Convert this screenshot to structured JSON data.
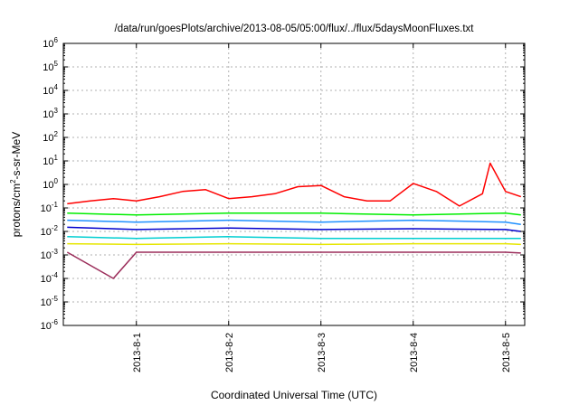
{
  "chart_data": {
    "type": "line",
    "title": "/data/run/goesPlots/archive/2013-08-05/05:00/flux/../flux/5daysMoonFluxes.txt",
    "xlabel": "Coordinated Universal Time (UTC)",
    "ylabel": {
      "prefix": "protons/cm",
      "sup": "2",
      "suffix": "-s-sr-MeV"
    },
    "y_scale": "log",
    "ylim": [
      1e-06,
      1000000.0
    ],
    "y_ticks": [
      {
        "value": 1e-06,
        "base": "10",
        "exp": "-6"
      },
      {
        "value": 1e-05,
        "base": "10",
        "exp": "-5"
      },
      {
        "value": 0.0001,
        "base": "10",
        "exp": "-4"
      },
      {
        "value": 0.001,
        "base": "10",
        "exp": "-3"
      },
      {
        "value": 0.01,
        "base": "10",
        "exp": "-2"
      },
      {
        "value": 0.1,
        "base": "10",
        "exp": "-1"
      },
      {
        "value": 1,
        "base": "10",
        "exp": "0"
      },
      {
        "value": 10,
        "base": "10",
        "exp": "1"
      },
      {
        "value": 100,
        "base": "10",
        "exp": "2"
      },
      {
        "value": 1000,
        "base": "10",
        "exp": "3"
      },
      {
        "value": 10000,
        "base": "10",
        "exp": "4"
      },
      {
        "value": 100000,
        "base": "10",
        "exp": "5"
      },
      {
        "value": 1000000,
        "base": "10",
        "exp": "6"
      }
    ],
    "xlim": [
      "2013-07-31T05:00",
      "2013-08-05T05:00"
    ],
    "x_ticks": [
      "2013-8-1",
      "2013-8-2",
      "2013-8-3",
      "2013-8-4",
      "2013-8-5"
    ],
    "grid": true,
    "series": [
      {
        "color": "#ff0000",
        "x": [
          "2013-07-31T06:00",
          "2013-07-31T12:00",
          "2013-07-31T18:00",
          "2013-08-01T00:00",
          "2013-08-01T06:00",
          "2013-08-01T12:00",
          "2013-08-01T18:00",
          "2013-08-02T00:00",
          "2013-08-02T06:00",
          "2013-08-02T12:00",
          "2013-08-02T18:00",
          "2013-08-03T00:00",
          "2013-08-03T06:00",
          "2013-08-03T12:00",
          "2013-08-03T18:00",
          "2013-08-04T00:00",
          "2013-08-04T06:00",
          "2013-08-04T12:00",
          "2013-08-04T18:00",
          "2013-08-04T20:00",
          "2013-08-05T00:00",
          "2013-08-05T04:00"
        ],
        "values": [
          0.15,
          0.2,
          0.25,
          0.2,
          0.3,
          0.5,
          0.6,
          0.25,
          0.3,
          0.4,
          0.8,
          0.9,
          0.3,
          0.2,
          0.2,
          1.1,
          0.5,
          0.12,
          0.4,
          8,
          0.5,
          0.3
        ]
      },
      {
        "color": "#00ee00",
        "x": [
          "2013-07-31T06:00",
          "2013-08-01T00:00",
          "2013-08-02T00:00",
          "2013-08-03T00:00",
          "2013-08-04T00:00",
          "2013-08-05T00:00",
          "2013-08-05T04:00"
        ],
        "values": [
          0.06,
          0.05,
          0.06,
          0.06,
          0.05,
          0.06,
          0.05
        ]
      },
      {
        "color": "#1e90ff",
        "x": [
          "2013-07-31T06:00",
          "2013-08-01T00:00",
          "2013-08-02T00:00",
          "2013-08-03T00:00",
          "2013-08-04T00:00",
          "2013-08-05T00:00",
          "2013-08-05T04:00"
        ],
        "values": [
          0.03,
          0.025,
          0.03,
          0.025,
          0.03,
          0.025,
          0.02
        ]
      },
      {
        "color": "#0000cd",
        "x": [
          "2013-07-31T06:00",
          "2013-08-01T00:00",
          "2013-08-02T00:00",
          "2013-08-03T00:00",
          "2013-08-04T00:00",
          "2013-08-05T00:00",
          "2013-08-05T04:00"
        ],
        "values": [
          0.015,
          0.012,
          0.014,
          0.012,
          0.013,
          0.012,
          0.01
        ]
      },
      {
        "color": "#00ced1",
        "x": [
          "2013-07-31T06:00",
          "2013-08-01T00:00",
          "2013-08-02T00:00",
          "2013-08-03T00:00",
          "2013-08-04T00:00",
          "2013-08-05T00:00",
          "2013-08-05T04:00"
        ],
        "values": [
          0.006,
          0.005,
          0.006,
          0.005,
          0.005,
          0.005,
          0.005
        ]
      },
      {
        "color": "#e6e600",
        "x": [
          "2013-07-31T06:00",
          "2013-08-01T00:00",
          "2013-08-02T00:00",
          "2013-08-03T00:00",
          "2013-08-04T00:00",
          "2013-08-05T00:00",
          "2013-08-05T04:00"
        ],
        "values": [
          0.003,
          0.0028,
          0.003,
          0.0028,
          0.003,
          0.003,
          0.0028
        ]
      },
      {
        "color": "#9b2d5a",
        "x": [
          "2013-07-31T06:00",
          "2013-07-31T18:00",
          "2013-08-01T00:00",
          "2013-08-02T00:00",
          "2013-08-03T00:00",
          "2013-08-04T00:00",
          "2013-08-05T00:00",
          "2013-08-05T04:00"
        ],
        "values": [
          0.0013,
          0.0001,
          0.0013,
          0.0013,
          0.0013,
          0.0013,
          0.0013,
          0.0012
        ]
      }
    ]
  }
}
